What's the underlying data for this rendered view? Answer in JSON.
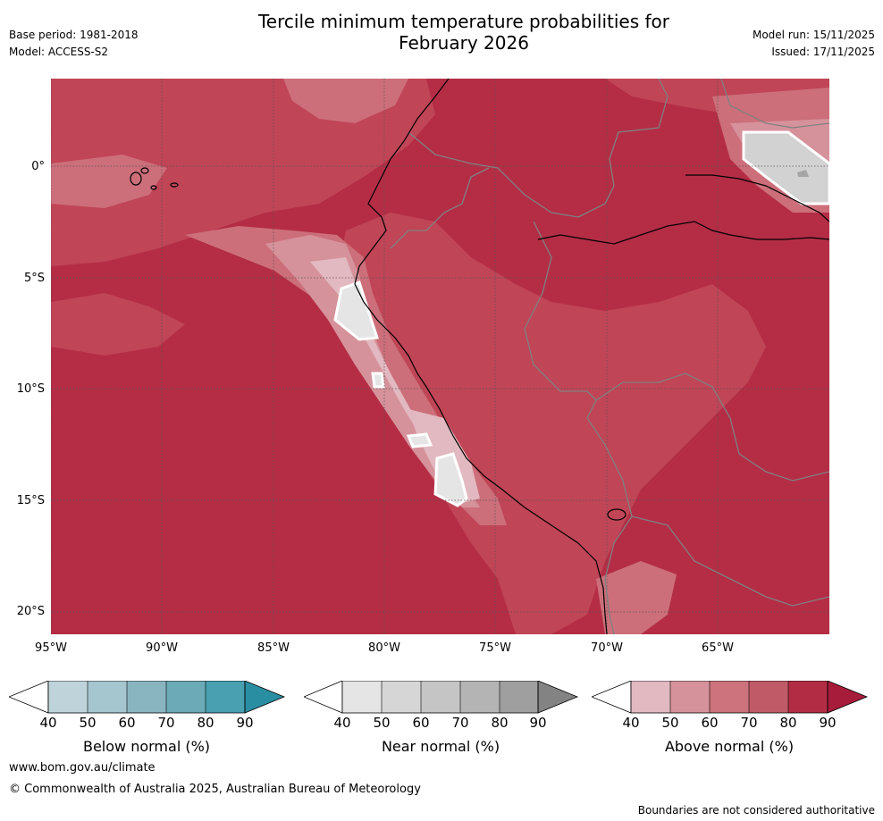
{
  "title_line1": "Tercile minimum temperature probabilities for",
  "title_line2": "February 2026",
  "meta_left": {
    "base_period": "Base period: 1981-2018",
    "model": "Model: ACCESS-S2"
  },
  "meta_right": {
    "model_run": "Model run: 15/11/2025",
    "issued": "Issued: 17/11/2025"
  },
  "map": {
    "lat_labels": [
      "0°",
      "5°S",
      "10°S",
      "15°S",
      "20°S"
    ],
    "lon_labels": [
      "95°W",
      "90°W",
      "85°W",
      "80°W",
      "75°W",
      "70°W",
      "65°W"
    ]
  },
  "colorbars": [
    {
      "label": "Below normal (%)",
      "ticks": [
        "40",
        "50",
        "60",
        "70",
        "80",
        "90"
      ],
      "colors": [
        "#ffffff",
        "#bed4da",
        "#a5c6cf",
        "#89b5c1",
        "#6baab6",
        "#48a0b0",
        "#2a8ea2"
      ]
    },
    {
      "label": "Near normal (%)",
      "ticks": [
        "40",
        "50",
        "60",
        "70",
        "80",
        "90"
      ],
      "colors": [
        "#ffffff",
        "#e5e5e5",
        "#d6d6d6",
        "#c5c5c5",
        "#b4b4b4",
        "#9f9f9f",
        "#838383"
      ]
    },
    {
      "label": "Above normal (%)",
      "ticks": [
        "40",
        "50",
        "60",
        "70",
        "80",
        "90"
      ],
      "colors": [
        "#ffffff",
        "#e2b9c0",
        "#d6929b",
        "#cc737d",
        "#c15a67",
        "#b22d44",
        "#a81c3b"
      ]
    }
  ],
  "footer": {
    "url": "www.bom.gov.au/climate",
    "copyright": "© Commonwealth of Australia 2025, Australian Bureau of Meteorology",
    "disclaimer": "Boundaries are not considered authoritative"
  }
}
